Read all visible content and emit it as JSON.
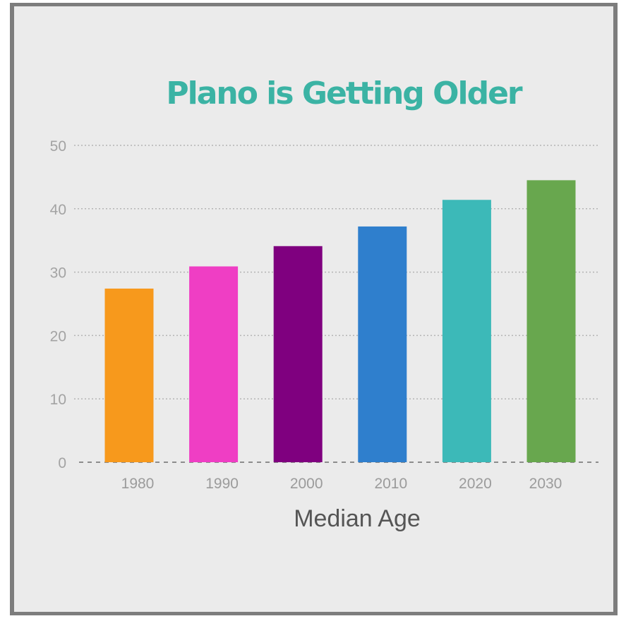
{
  "chart_data": {
    "type": "bar",
    "title": "Plano is Getting Older",
    "xlabel": "Median Age",
    "ylabel": "",
    "categories": [
      "1980",
      "1990",
      "2000",
      "2010",
      "2020",
      "2030"
    ],
    "values": [
      27.4,
      30.9,
      34.1,
      37.2,
      41.4,
      44.5
    ],
    "colors": [
      "#f7991c",
      "#ef3ec4",
      "#7f007f",
      "#2f7fcd",
      "#3cb9b8",
      "#68a74e"
    ],
    "title_color": "#3bb3a4",
    "ylim": [
      0,
      50
    ],
    "yticks": [
      0,
      10,
      20,
      30,
      40,
      50
    ],
    "grid": true,
    "legend": "none"
  }
}
